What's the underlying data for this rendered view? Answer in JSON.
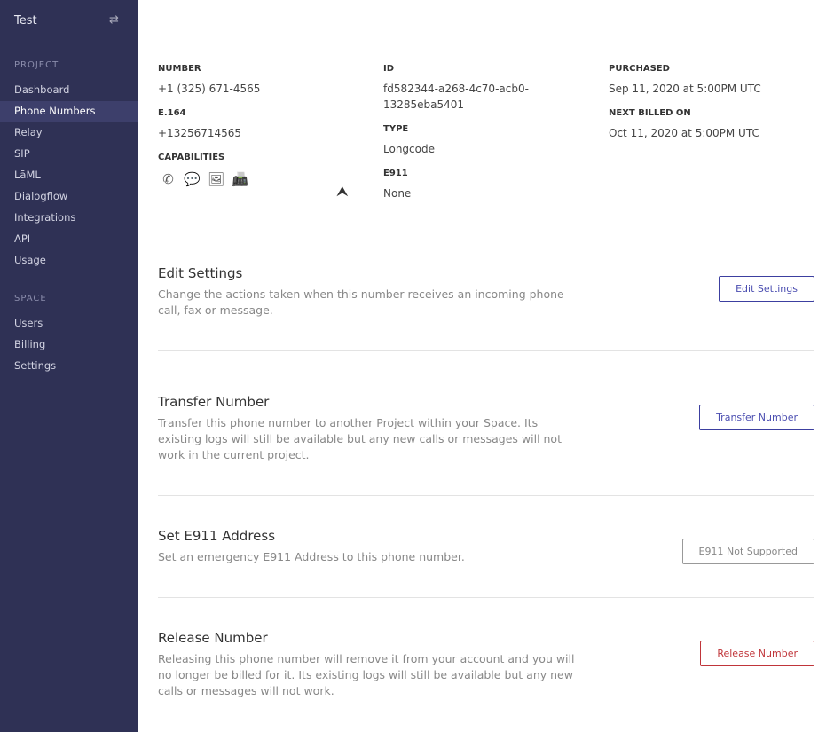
{
  "sidebar": {
    "title": "Test",
    "switch_icon": "swap-arrows-icon",
    "project_label": "PROJECT",
    "project_items": [
      "Dashboard",
      "Phone Numbers",
      "Relay",
      "SIP",
      "LāML",
      "Dialogflow",
      "Integrations",
      "API",
      "Usage"
    ],
    "space_label": "SPACE",
    "space_items": [
      "Users",
      "Billing",
      "Settings"
    ],
    "active": "Phone Numbers"
  },
  "details": {
    "number_label": "NUMBER",
    "number": "+1 (325) 671-4565",
    "e164_label": "E.164",
    "e164": "+13256714565",
    "capabilities_label": "CAPABILITIES",
    "capabilities": [
      "phone-icon",
      "message-icon",
      "mms-image-icon",
      "fax-icon"
    ],
    "id_label": "ID",
    "id_line1": "fd582344-a268-4c70-acb0-",
    "id_line2": "13285eba5401",
    "type_label": "TYPE",
    "type": "Longcode",
    "e911_label": "E911",
    "e911": "None",
    "purchased_label": "PURCHASED",
    "purchased": "Sep 11, 2020 at 5:00PM UTC",
    "next_billed_label": "NEXT BILLED ON",
    "next_billed": "Oct 11, 2020 at 5:00PM UTC"
  },
  "sections": [
    {
      "title": "Edit Settings",
      "desc": "Change the actions taken when this number receives an incoming phone call, fax or message.",
      "button": "Edit Settings"
    },
    {
      "title": "Transfer Number",
      "desc": "Transfer this phone number to another Project within your Space. Its existing logs will still be available but any new calls or messages will not work in the current project.",
      "button": "Transfer Number"
    },
    {
      "title": "Set E911 Address",
      "desc": "Set an emergency E911 Address to this phone number.",
      "button": "E911 Not Supported"
    },
    {
      "title": "Release Number",
      "desc": "Releasing this phone number will remove it from your account and you will no longer be billed for it. Its existing logs will still be available but any new calls or messages will not work.",
      "button": "Release Number"
    }
  ]
}
